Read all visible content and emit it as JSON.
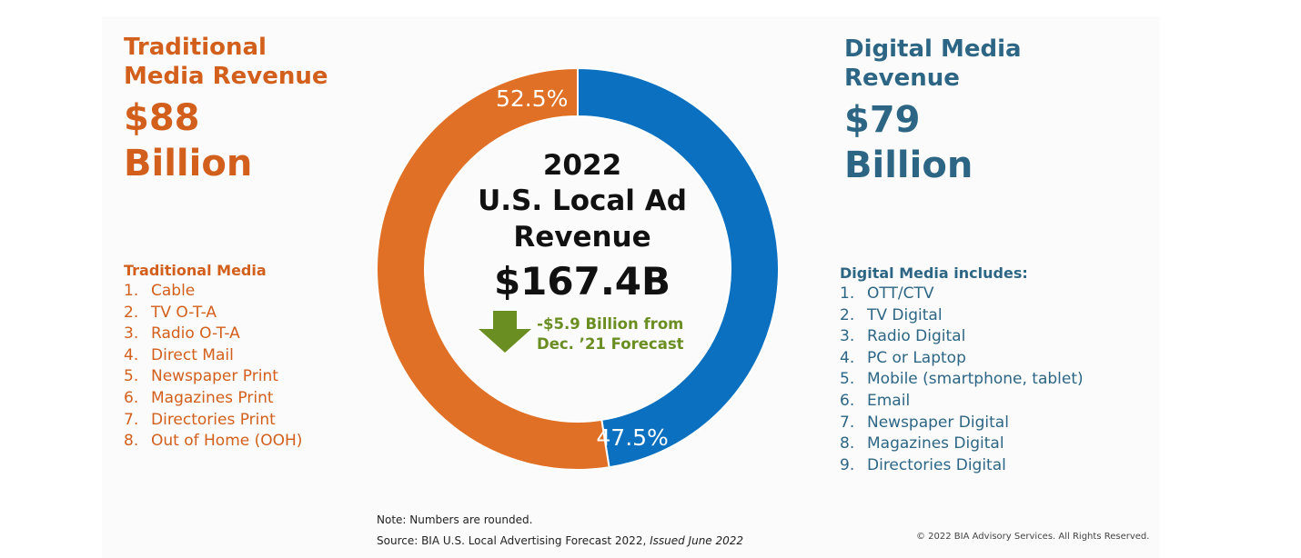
{
  "colors": {
    "traditional": "#e07025",
    "digital": "#0a70bf",
    "trad_text": "#d35f1c",
    "digital_text": "#2d6685",
    "arrow": "#6b8e23"
  },
  "traditional": {
    "header": [
      "Traditional",
      "Media Revenue"
    ],
    "amount": "$88",
    "unit": "Billion",
    "list_title": "Traditional Media",
    "items": [
      {
        "n": "1.",
        "label": "Cable"
      },
      {
        "n": "2.",
        "label": "TV O-T-A"
      },
      {
        "n": "3.",
        "label": "Radio O-T-A"
      },
      {
        "n": "4.",
        "label": "Direct Mail"
      },
      {
        "n": "5.",
        "label": "Newspaper Print"
      },
      {
        "n": "6.",
        "label": "Magazines Print"
      },
      {
        "n": "7.",
        "label": "Directories Print"
      },
      {
        "n": "8.",
        "label": "Out of Home (OOH)"
      }
    ]
  },
  "digital": {
    "header": [
      "Digital Media",
      "Revenue"
    ],
    "amount": "$79",
    "unit": "Billion",
    "list_title": "Digital Media includes:",
    "items": [
      {
        "n": "1.",
        "label": "OTT/CTV"
      },
      {
        "n": "2.",
        "label": "TV Digital"
      },
      {
        "n": "3.",
        "label": "Radio Digital"
      },
      {
        "n": "4.",
        "label": "PC or Laptop"
      },
      {
        "n": "5.",
        "label": "Mobile (smartphone, tablet)"
      },
      {
        "n": "6.",
        "label": "Email"
      },
      {
        "n": "7.",
        "label": "Newspaper Digital"
      },
      {
        "n": "8.",
        "label": "Magazines Digital"
      },
      {
        "n": "9.",
        "label": "Directories Digital"
      }
    ]
  },
  "center": {
    "year": "2022",
    "line1": "U.S. Local Ad",
    "line2": "Revenue",
    "total": "$167.4B",
    "change_line1": "-$5.9 Billion from",
    "change_line2": "Dec. ’21 Forecast"
  },
  "footer": {
    "note": "Note: Numbers are rounded.",
    "source_prefix": "Source: BIA U.S. Local Advertising Forecast 2022, ",
    "source_issued": "Issued June 2022",
    "copyright": "© 2022 BIA Advisory Services. All Rights Reserved."
  },
  "chart_data": {
    "type": "pie",
    "title": "2022 U.S. Local Ad Revenue",
    "total": "$167.4B",
    "slices": [
      {
        "label": "Traditional Media Revenue",
        "value": 52.5,
        "display": "52.5%",
        "color": "#e07025"
      },
      {
        "label": "Digital Media Revenue",
        "value": 47.5,
        "display": "47.5%",
        "color": "#0a70bf"
      }
    ]
  }
}
